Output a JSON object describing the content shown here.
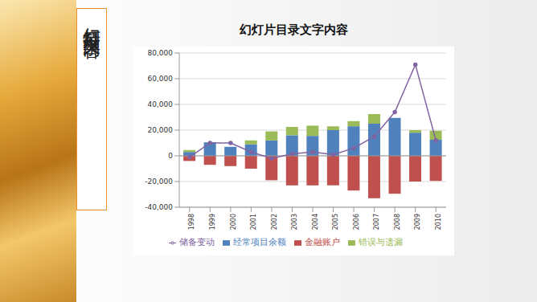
{
  "slide_title": "幻灯片目录文字内容",
  "chart_data": {
    "type": "bar",
    "title": "幻灯片目录文字内容",
    "stacked": true,
    "grid": true,
    "legend": "bottom",
    "categories": [
      "1998",
      "1999",
      "2000",
      "2001",
      "2002",
      "2003",
      "2004",
      "2005",
      "2006",
      "2007",
      "2008",
      "2009",
      "2010"
    ],
    "series": [
      {
        "name": "经常项目余额",
        "type": "bar",
        "color": "#4f81bd",
        "values": [
          3000,
          10500,
          7000,
          9000,
          12000,
          16000,
          15500,
          20000,
          23000,
          25000,
          29500,
          18000,
          12500
        ]
      },
      {
        "name": "金融账户",
        "type": "bar",
        "color": "#c0504d",
        "values": [
          -4000,
          -7000,
          -8000,
          -10000,
          -19000,
          -23000,
          -23000,
          -23000,
          -27000,
          -33000,
          -29500,
          -20000,
          -19500
        ]
      },
      {
        "name": "错误与遗漏",
        "type": "bar",
        "color": "#9bbb59",
        "values": [
          1500,
          0,
          0,
          3000,
          7000,
          6500,
          8000,
          3000,
          4000,
          7500,
          0,
          2000,
          7000
        ]
      },
      {
        "name": "储备变动",
        "type": "line",
        "color": "#8064a2",
        "marker": "circle",
        "values": [
          -1000,
          10000,
          10000,
          3000,
          -2000,
          1500,
          3000,
          1000,
          6000,
          15000,
          34000,
          71000,
          12000
        ]
      }
    ],
    "ylim": [
      -40000,
      80000
    ],
    "yticks": [
      {
        "value": -40000,
        "label": "-40,000"
      },
      {
        "value": -20000,
        "label": "-20,000"
      },
      0,
      {
        "value": 20000,
        "label": "20,000"
      },
      {
        "value": 40000,
        "label": "40,000"
      },
      {
        "value": 60000,
        "label": "60,000"
      },
      {
        "value": 80000,
        "label": "80,000"
      }
    ]
  }
}
